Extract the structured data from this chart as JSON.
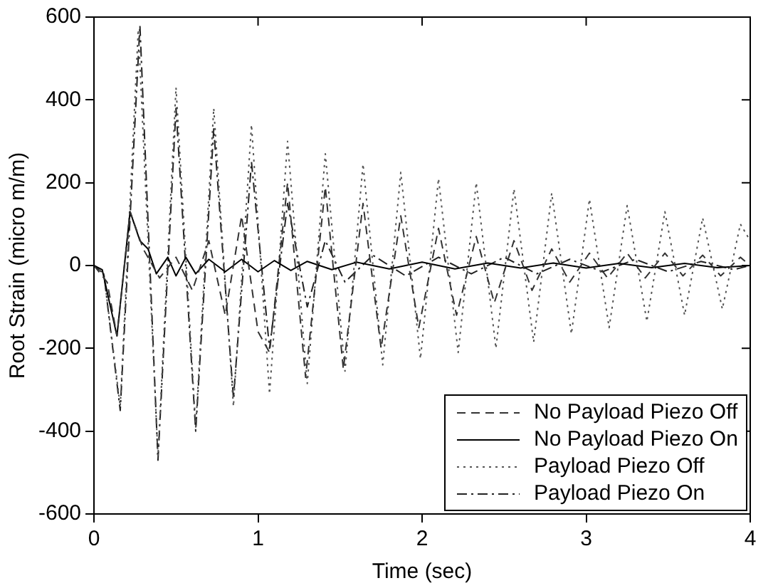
{
  "chart_data": {
    "type": "line",
    "xlabel": "Time (sec)",
    "ylabel": "Root Strain (micro m/m)",
    "xlim": [
      0,
      4
    ],
    "xticks": [
      0,
      1,
      2,
      3,
      4
    ],
    "ylim": [
      -600,
      600
    ],
    "yticks": [
      -600,
      -400,
      -200,
      0,
      200,
      400,
      600
    ],
    "grid": false,
    "legend": "bottom right",
    "marker": "none",
    "series": [
      {
        "name": "No Payload Piezo Off",
        "color": "#333333",
        "line_style": "dashed",
        "x": [
          0,
          0.08,
          0.14,
          0.22,
          0.3,
          0.4,
          0.5,
          0.6,
          0.7,
          0.8,
          0.9,
          1.0,
          1.07,
          1.18,
          1.29,
          1.41,
          1.52,
          1.64,
          1.75,
          1.87,
          1.98,
          2.1,
          2.21,
          2.33,
          2.44,
          2.56,
          2.67,
          2.79,
          2.9,
          3.02,
          3.13,
          3.25,
          3.36,
          3.48,
          3.59,
          3.71,
          3.82,
          3.94,
          4.0
        ],
        "values": [
          0,
          -40,
          -170,
          130,
          40,
          -30,
          20,
          -60,
          60,
          -120,
          120,
          -160,
          -210,
          200,
          -270,
          190,
          -250,
          150,
          -200,
          120,
          -150,
          90,
          -120,
          70,
          -90,
          60,
          -60,
          40,
          -40,
          30,
          -30,
          30,
          -30,
          30,
          -25,
          25,
          -25,
          20,
          0
        ]
      },
      {
        "name": "No Payload Piezo On",
        "color": "#000000",
        "line_style": "solid",
        "x": [
          0,
          0.05,
          0.14,
          0.22,
          0.28,
          0.33,
          0.38,
          0.45,
          0.5,
          0.56,
          0.62,
          0.7,
          0.8,
          0.9,
          1.0,
          1.1,
          1.2,
          1.3,
          1.45,
          1.6,
          1.8,
          2.0,
          2.2,
          2.4,
          2.6,
          2.8,
          3.0,
          3.2,
          3.4,
          3.6,
          3.8,
          4.0
        ],
        "values": [
          0,
          -10,
          -170,
          130,
          60,
          40,
          -20,
          20,
          -25,
          20,
          -20,
          15,
          -15,
          15,
          -15,
          12,
          -12,
          10,
          -10,
          8,
          -8,
          8,
          -8,
          6,
          -6,
          6,
          -6,
          5,
          -5,
          5,
          -5,
          0
        ]
      },
      {
        "name": "Payload Piezo Off",
        "color": "#555555",
        "line_style": "dotted",
        "x": [
          0,
          0.06,
          0.16,
          0.27,
          0.39,
          0.5,
          0.62,
          0.73,
          0.85,
          0.96,
          1.07,
          1.18,
          1.3,
          1.41,
          1.53,
          1.64,
          1.76,
          1.87,
          1.99,
          2.1,
          2.22,
          2.33,
          2.45,
          2.56,
          2.68,
          2.79,
          2.91,
          3.02,
          3.14,
          3.25,
          3.37,
          3.48,
          3.6,
          3.71,
          3.83,
          3.94,
          4.0
        ],
        "values": [
          0,
          -20,
          -340,
          570,
          -460,
          430,
          -390,
          380,
          -340,
          340,
          -310,
          300,
          -285,
          270,
          -255,
          245,
          -240,
          225,
          -225,
          210,
          -210,
          200,
          -200,
          185,
          -185,
          175,
          -165,
          160,
          -150,
          145,
          -135,
          130,
          -120,
          115,
          -105,
          100,
          60
        ]
      },
      {
        "name": "Payload Piezo On",
        "color": "#222222",
        "line_style": "dashdot",
        "x": [
          0,
          0.06,
          0.16,
          0.28,
          0.39,
          0.5,
          0.62,
          0.73,
          0.85,
          0.96,
          1.07,
          1.18,
          1.3,
          1.41,
          1.53,
          1.7,
          1.9,
          2.1,
          2.3,
          2.5,
          2.7,
          2.9,
          3.1,
          3.3,
          3.5,
          3.7,
          3.9,
          4.0
        ],
        "values": [
          0,
          -20,
          -350,
          580,
          -470,
          380,
          -400,
          330,
          -320,
          250,
          -200,
          150,
          -100,
          60,
          -40,
          25,
          -25,
          20,
          -20,
          20,
          -20,
          15,
          -15,
          15,
          -15,
          10,
          -10,
          0
        ]
      }
    ]
  }
}
